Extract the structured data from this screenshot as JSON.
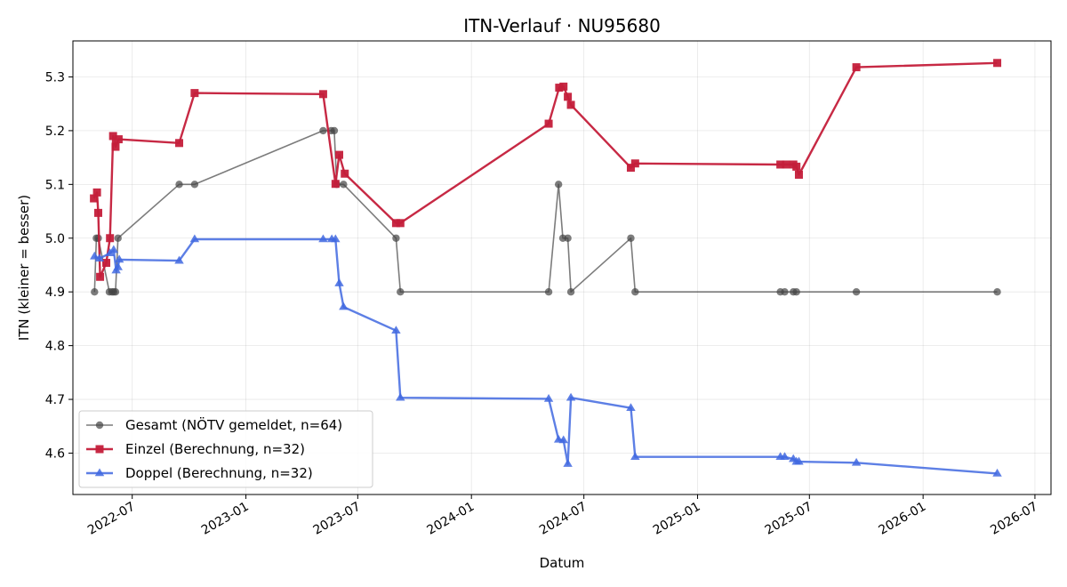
{
  "chart_data": {
    "type": "line",
    "title": "ITN-Verlauf · NU95680",
    "xlabel": "Datum",
    "ylabel": "ITN  (kleiner = besser)",
    "xlim": [
      "2022-03-27",
      "2026-07-27"
    ],
    "ylim": [
      4.523,
      5.367
    ],
    "grid": true,
    "legend_position": "lower-left",
    "x_ticks": [
      "2022-07",
      "2023-01",
      "2023-07",
      "2024-01",
      "2024-07",
      "2025-01",
      "2025-07",
      "2026-01",
      "2026-07"
    ],
    "y_ticks": [
      4.6,
      4.7,
      4.8,
      4.9,
      5.0,
      5.1,
      5.2,
      5.3
    ],
    "series": [
      {
        "name": "Gesamt (NÖTV gemeldet, n=64)",
        "color": "#444444",
        "opacity": 0.7,
        "marker": "circle",
        "points": [
          [
            "2022-05-01",
            4.9
          ],
          [
            "2022-05-04",
            5.0
          ],
          [
            "2022-05-07",
            5.0
          ],
          [
            "2022-05-25",
            4.9
          ],
          [
            "2022-05-29",
            4.9
          ],
          [
            "2022-06-01",
            4.9
          ],
          [
            "2022-06-04",
            4.9
          ],
          [
            "2022-06-08",
            5.0
          ],
          [
            "2022-09-15",
            5.1
          ],
          [
            "2022-10-10",
            5.1
          ],
          [
            "2023-05-06",
            5.2
          ],
          [
            "2023-05-19",
            5.2
          ],
          [
            "2023-05-24",
            5.2
          ],
          [
            "2023-05-28",
            5.1
          ],
          [
            "2023-06-08",
            5.1
          ],
          [
            "2023-09-01",
            5.0
          ],
          [
            "2023-09-08",
            4.9
          ],
          [
            "2024-05-05",
            4.9
          ],
          [
            "2024-05-21",
            5.1
          ],
          [
            "2024-05-28",
            5.0
          ],
          [
            "2024-06-05",
            5.0
          ],
          [
            "2024-06-10",
            4.9
          ],
          [
            "2024-09-15",
            5.0
          ],
          [
            "2024-09-22",
            4.9
          ],
          [
            "2025-05-15",
            4.9
          ],
          [
            "2025-05-22",
            4.9
          ],
          [
            "2025-06-05",
            4.9
          ],
          [
            "2025-06-10",
            4.9
          ],
          [
            "2025-09-15",
            4.9
          ],
          [
            "2026-05-01",
            4.9
          ]
        ]
      },
      {
        "name": "Einzel (Berechnung, n=32)",
        "color": "#c41e3a",
        "opacity": 0.95,
        "marker": "square",
        "points": [
          [
            "2022-04-30",
            5.074
          ],
          [
            "2022-05-05",
            5.085
          ],
          [
            "2022-05-07",
            5.047
          ],
          [
            "2022-05-10",
            4.928
          ],
          [
            "2022-05-20",
            4.954
          ],
          [
            "2022-05-26",
            5.0
          ],
          [
            "2022-05-31",
            5.19
          ],
          [
            "2022-06-04",
            5.17
          ],
          [
            "2022-06-09",
            5.184
          ],
          [
            "2022-09-15",
            5.177
          ],
          [
            "2022-10-10",
            5.27
          ],
          [
            "2023-05-06",
            5.268
          ],
          [
            "2023-05-26",
            5.101
          ],
          [
            "2023-06-01",
            5.155
          ],
          [
            "2023-06-10",
            5.12
          ],
          [
            "2023-09-01",
            5.028
          ],
          [
            "2023-09-08",
            5.028
          ],
          [
            "2024-05-05",
            5.213
          ],
          [
            "2024-05-22",
            5.28
          ],
          [
            "2024-05-29",
            5.282
          ],
          [
            "2024-06-05",
            5.263
          ],
          [
            "2024-06-10",
            5.248
          ],
          [
            "2024-09-15",
            5.131
          ],
          [
            "2024-09-22",
            5.139
          ],
          [
            "2025-05-15",
            5.137
          ],
          [
            "2025-05-24",
            5.137
          ],
          [
            "2025-06-05",
            5.137
          ],
          [
            "2025-06-10",
            5.133
          ],
          [
            "2025-06-14",
            5.118
          ],
          [
            "2025-09-15",
            5.318
          ],
          [
            "2026-05-01",
            5.326
          ]
        ]
      },
      {
        "name": "Doppel (Berechnung, n=32)",
        "color": "#4169e1",
        "opacity": 0.85,
        "marker": "triangle",
        "points": [
          [
            "2022-05-01",
            4.966
          ],
          [
            "2022-05-09",
            4.962
          ],
          [
            "2022-05-26",
            4.972
          ],
          [
            "2022-06-01",
            4.978
          ],
          [
            "2022-06-05",
            4.94
          ],
          [
            "2022-06-08",
            4.946
          ],
          [
            "2022-06-10",
            4.96
          ],
          [
            "2022-09-15",
            4.958
          ],
          [
            "2022-10-10",
            4.998
          ],
          [
            "2023-05-06",
            4.998
          ],
          [
            "2023-05-20",
            4.998
          ],
          [
            "2023-05-26",
            4.998
          ],
          [
            "2023-06-01",
            4.916
          ],
          [
            "2023-06-08",
            4.872
          ],
          [
            "2023-09-01",
            4.828
          ],
          [
            "2023-09-08",
            4.703
          ],
          [
            "2024-05-05",
            4.701
          ],
          [
            "2024-05-21",
            4.625
          ],
          [
            "2024-05-29",
            4.624
          ],
          [
            "2024-06-05",
            4.58
          ],
          [
            "2024-06-10",
            4.703
          ],
          [
            "2024-09-15",
            4.684
          ],
          [
            "2024-09-22",
            4.593
          ],
          [
            "2025-05-15",
            4.593
          ],
          [
            "2025-05-22",
            4.593
          ],
          [
            "2025-06-05",
            4.589
          ],
          [
            "2025-06-10",
            4.584
          ],
          [
            "2025-06-14",
            4.584
          ],
          [
            "2025-09-15",
            4.582
          ],
          [
            "2026-05-01",
            4.562
          ]
        ]
      }
    ]
  }
}
